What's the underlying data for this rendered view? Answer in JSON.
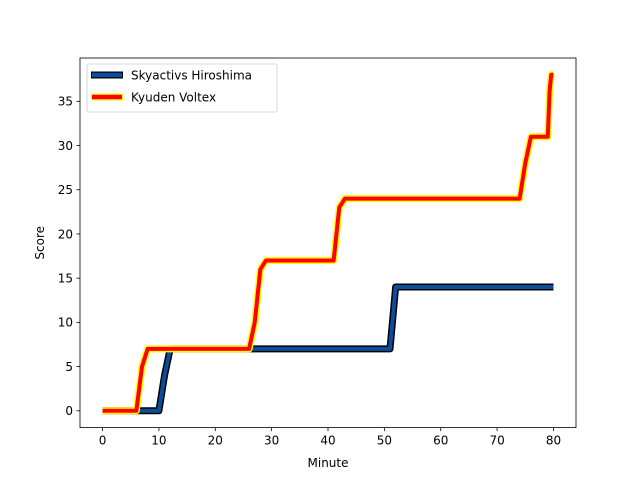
{
  "chart_data": {
    "type": "line",
    "title": "",
    "xlabel": "Minute",
    "ylabel": "Score",
    "xlim": [
      -4,
      84
    ],
    "ylim": [
      -1.9,
      39.9
    ],
    "xticks": [
      0,
      10,
      20,
      30,
      40,
      50,
      60,
      70,
      80
    ],
    "yticks": [
      0,
      5,
      10,
      15,
      20,
      25,
      30,
      35
    ],
    "grid": false,
    "legend": "upper left",
    "series": [
      {
        "name": "Skyactivs Hiroshima",
        "line_color": "#0a4d9c",
        "outline_color": "#000000",
        "x": [
          0,
          10,
          11,
          12,
          51,
          52,
          80
        ],
        "y": [
          0,
          0,
          4,
          7,
          7,
          14,
          14
        ]
      },
      {
        "name": "Kyuden Voltex",
        "line_color": "#ff0000",
        "outline_color": "#ffff00",
        "x": [
          0,
          6,
          7,
          8,
          26,
          27,
          28,
          29,
          41,
          42,
          43,
          74,
          75,
          76,
          79,
          79.3,
          79.6,
          80
        ],
        "y": [
          0,
          0,
          5,
          7,
          7,
          10,
          16,
          17,
          17,
          23,
          24,
          24,
          28,
          31,
          31,
          36,
          38,
          38
        ]
      }
    ]
  }
}
